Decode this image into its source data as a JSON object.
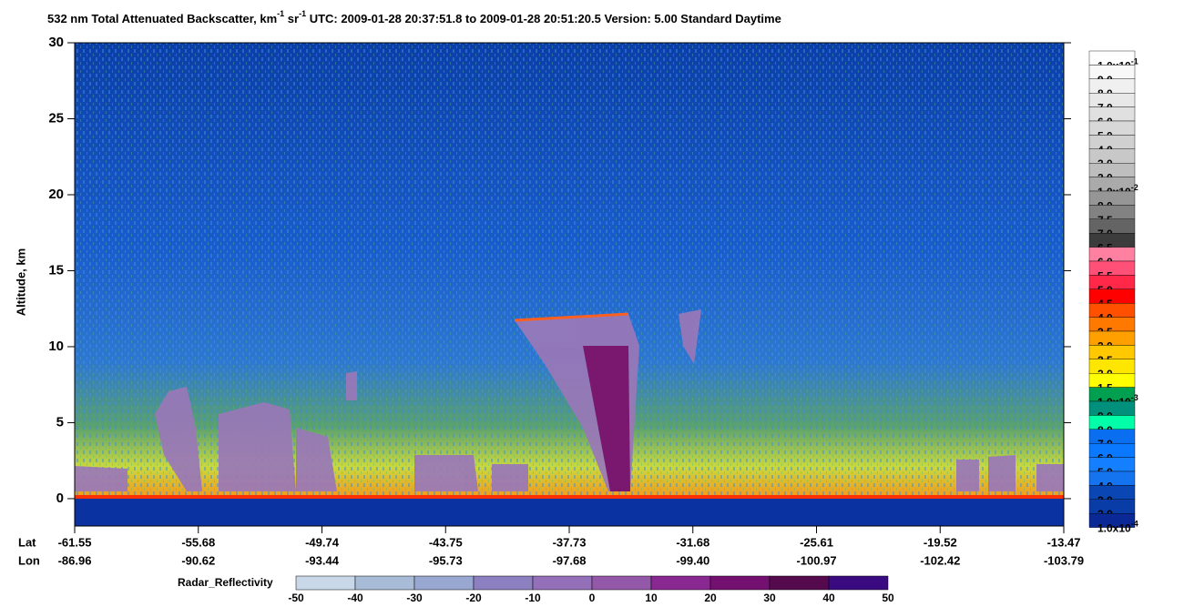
{
  "chart_data": {
    "type": "curtain",
    "title": {
      "main": "532 nm Total Attenuated Backscatter, km",
      "sup1": "-1",
      "mid": " sr",
      "sup2": "-1",
      "utc": "UTC:  2009-01-28 20:37:51.8  to  2009-01-28 20:51:20.5",
      "version": "Version: 5.00  Standard  Daytime"
    },
    "y_label": "Altitude, km",
    "ylim": [
      -1.8,
      30
    ],
    "yticks": [
      0,
      5,
      10,
      15,
      20,
      25,
      30
    ],
    "x_rows": {
      "lat_label": "Lat",
      "lon_label": "Lon",
      "lat": [
        -61.55,
        -55.68,
        -49.74,
        -43.75,
        -37.73,
        -31.68,
        -25.61,
        -19.52,
        -13.47
      ],
      "lon": [
        -86.96,
        -90.62,
        -93.44,
        -95.73,
        -97.68,
        -99.4,
        -100.97,
        -102.42,
        -103.79
      ],
      "lon_labels": [
        "-86.96",
        "-90.62",
        "-93.44",
        "-95.73",
        "-97.68",
        "-99.40",
        "-100.97",
        "-102.42",
        "-103.79"
      ]
    },
    "backscatter_colorbar": [
      {
        "label": "1.0x10",
        "exp": "-1",
        "color": "#ffffff"
      },
      {
        "label": "9.0",
        "color": "#f8f8f8"
      },
      {
        "label": "8.0",
        "color": "#f0f0f0"
      },
      {
        "label": "7.0",
        "color": "#e8e8e8"
      },
      {
        "label": "6.0",
        "color": "#e0e0e0"
      },
      {
        "label": "5.0",
        "color": "#d8d8d8"
      },
      {
        "label": "4.0",
        "color": "#d0d0d0"
      },
      {
        "label": "3.0",
        "color": "#c8c8c8"
      },
      {
        "label": "2.0",
        "color": "#bebebe"
      },
      {
        "label": "1.0x10",
        "exp": "-2",
        "color": "#aaaaaa"
      },
      {
        "label": "8.0",
        "color": "#969696"
      },
      {
        "label": "7.5",
        "color": "#828282"
      },
      {
        "label": "7.0",
        "color": "#646464"
      },
      {
        "label": "6.5",
        "color": "#3c3c3c"
      },
      {
        "label": "6.0",
        "color": "#ff80a0"
      },
      {
        "label": "5.5",
        "color": "#ff5078"
      },
      {
        "label": "5.0",
        "color": "#ff2848"
      },
      {
        "label": "4.5",
        "color": "#ff0000"
      },
      {
        "label": "4.0",
        "color": "#ff5000"
      },
      {
        "label": "3.5",
        "color": "#ff7800"
      },
      {
        "label": "3.0",
        "color": "#ffa000"
      },
      {
        "label": "2.5",
        "color": "#ffc800"
      },
      {
        "label": "2.0",
        "color": "#ffe600"
      },
      {
        "label": "1.5",
        "color": "#ffff00"
      },
      {
        "label": "1.0x10",
        "exp": "-3",
        "color": "#00a050"
      },
      {
        "label": "9.0",
        "color": "#00907c"
      },
      {
        "label": "8.0",
        "color": "#00ffa8"
      },
      {
        "label": "7.0",
        "color": "#0a6ef0"
      },
      {
        "label": "6.0",
        "color": "#0a78ff"
      },
      {
        "label": "5.0",
        "color": "#1480ff"
      },
      {
        "label": "4.0",
        "color": "#1474f0"
      },
      {
        "label": "3.0",
        "color": "#0a46b4"
      },
      {
        "label": "2.0",
        "color": "#0a3ca8"
      },
      {
        "label": "1.0x10",
        "exp": "-4",
        "color": "#0a2896"
      }
    ],
    "radar_colorbar": {
      "label": "Radar_Reflectivity",
      "ticks": [
        -50,
        -40,
        -30,
        -20,
        -10,
        0,
        10,
        20,
        30,
        40,
        50
      ],
      "colors": [
        "#c8d8e8",
        "#a8bcd8",
        "#98a8d0",
        "#8c80c0",
        "#9470b8",
        "#9458a8",
        "#882890",
        "#741070",
        "#540a4c",
        "#3a0a80"
      ]
    }
  }
}
